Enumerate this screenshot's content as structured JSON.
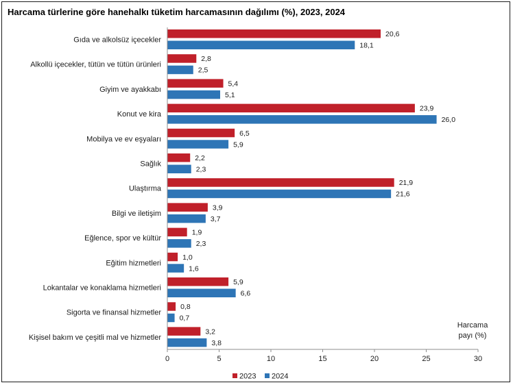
{
  "chart_data": {
    "type": "bar",
    "orientation": "horizontal",
    "title": "Harcama türlerine göre hanehalkı tüketim harcamasının dağılımı (%), 2023, 2024",
    "xlabel_line1": "Harcama",
    "xlabel_line2": "payı  (%)",
    "xlim": [
      0,
      30
    ],
    "xticks": [
      0,
      5,
      10,
      15,
      20,
      25,
      30
    ],
    "grid": false,
    "legend_position": "bottom",
    "categories": [
      "Gıda ve alkolsüz içecekler",
      "Alkollü içecekler, tütün ve tütün ürünleri",
      "Giyim ve ayakkabı",
      "Konut ve kira",
      "Mobilya ve ev eşyaları",
      "Sağlık",
      "Ulaştırma",
      "Bilgi ve iletişim",
      "Eğlence, spor ve kültür",
      "Eğitim hizmetleri",
      "Lokantalar ve konaklama hizmetleri",
      "Sigorta ve finansal hizmetler",
      "Kişisel bakım ve çeşitli mal ve hizmetler"
    ],
    "series": [
      {
        "name": "2023",
        "color": "#C0202A",
        "values": [
          20.6,
          2.8,
          5.4,
          23.9,
          6.5,
          2.2,
          21.9,
          3.9,
          1.9,
          1.0,
          5.9,
          0.8,
          3.2
        ],
        "labels": [
          "20,6",
          "2,8",
          "5,4",
          "23,9",
          "6,5",
          "2,2",
          "21,9",
          "3,9",
          "1,9",
          "1,0",
          "5,9",
          "0,8",
          "3,2"
        ]
      },
      {
        "name": "2024",
        "color": "#2E75B6",
        "values": [
          18.1,
          2.5,
          5.1,
          26.0,
          5.9,
          2.3,
          21.6,
          3.7,
          2.3,
          1.6,
          6.6,
          0.7,
          3.8
        ],
        "labels": [
          "18,1",
          "2,5",
          "5,1",
          "26,0",
          "5,9",
          "2,3",
          "21,6",
          "3,7",
          "2,3",
          "1,6",
          "6,6",
          "0,7",
          "3,8"
        ]
      }
    ]
  }
}
